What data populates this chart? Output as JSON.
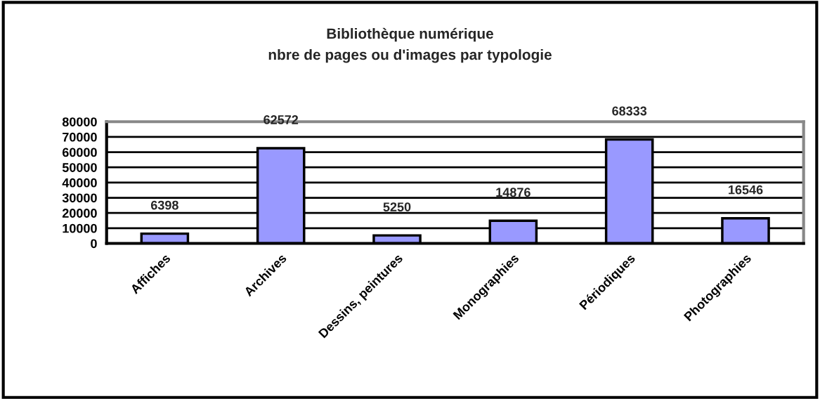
{
  "chart_data": {
    "type": "bar",
    "title": "Bibliothèque numérique\nnbre de pages ou d'images par typologie",
    "categories": [
      "Affiches",
      "Archives",
      "Dessins, peintures",
      "Monographies",
      "Périodiques",
      "Photographies"
    ],
    "values": [
      6398,
      62572,
      5250,
      14876,
      68333,
      16546
    ],
    "color": "#9999ff",
    "ylim": [
      0,
      80000
    ],
    "yticks": [
      0,
      10000,
      20000,
      30000,
      40000,
      50000,
      60000,
      70000,
      80000
    ],
    "grid": "y",
    "data_labels": true
  }
}
